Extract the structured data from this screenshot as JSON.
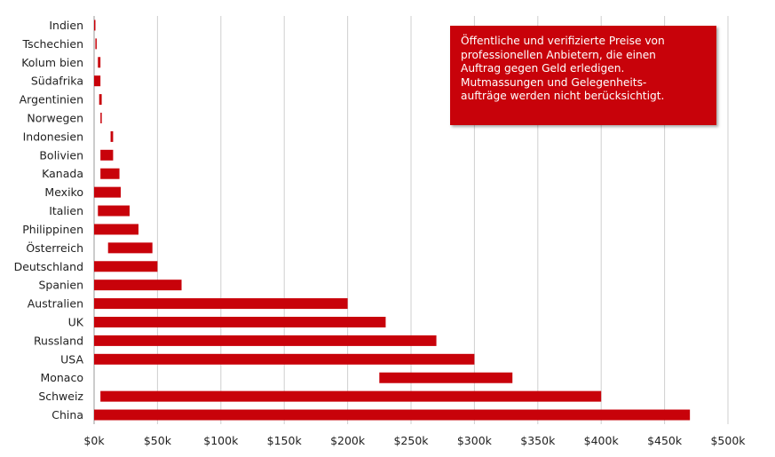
{
  "chart_data": {
    "type": "bar",
    "orientation": "horizontal",
    "style": "floating range bars (min to max)",
    "color": "#c8020a",
    "grid": true,
    "xlim": [
      0,
      500000
    ],
    "x_ticks": [
      0,
      50000,
      100000,
      150000,
      200000,
      250000,
      300000,
      350000,
      400000,
      450000,
      500000
    ],
    "x_tick_labels": [
      "$0k",
      "$50k",
      "$100k",
      "$150k",
      "$200k",
      "$250k",
      "$300k",
      "$350k",
      "$400k",
      "$450k",
      "$500k"
    ],
    "categories": [
      "Indien",
      "Tschechien",
      "Kolum bien",
      "Südafrika",
      "Argentinien",
      "Norwegen",
      "Indonesien",
      "Bolivien",
      "Kanada",
      "Mexiko",
      "Italien",
      "Philippinen",
      "Österreich",
      "Deutschland",
      "Spanien",
      "Australien",
      "UK",
      "Russland",
      "USA",
      "Monaco",
      "Schweiz",
      "China"
    ],
    "ranges": [
      [
        0,
        1000
      ],
      [
        1000,
        2000
      ],
      [
        3000,
        5000
      ],
      [
        0,
        5000
      ],
      [
        4000,
        6000
      ],
      [
        5000,
        6000
      ],
      [
        13000,
        15000
      ],
      [
        5000,
        15000
      ],
      [
        5000,
        20000
      ],
      [
        0,
        21000
      ],
      [
        3000,
        28000
      ],
      [
        0,
        35000
      ],
      [
        11000,
        46000
      ],
      [
        0,
        50000
      ],
      [
        0,
        69000
      ],
      [
        0,
        200000
      ],
      [
        0,
        230000
      ],
      [
        0,
        270000
      ],
      [
        0,
        300000
      ],
      [
        225000,
        330000
      ],
      [
        5000,
        400000
      ],
      [
        0,
        470000
      ]
    ]
  },
  "annotation": {
    "lines": [
      "Öffentliche und verifizierte Preise von",
      "professionellen Anbietern, die einen",
      "Auftrag gegen Geld erledigen.",
      "Mutmassungen und Gelegenheits-",
      "aufträge werden nicht berücksichtigt."
    ],
    "background": "#c8020a"
  }
}
